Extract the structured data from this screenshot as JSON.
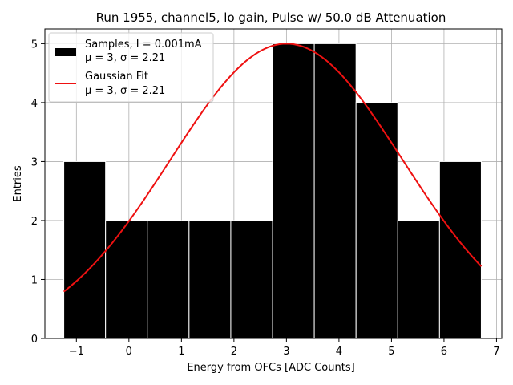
{
  "chart_data": {
    "type": "bar",
    "title": "Run 1955, channel5, lo gain, Pulse w/ 50.0 dB Attenuation",
    "xlabel": "Energy from OFCs [ADC Counts]",
    "ylabel": "Entries",
    "xlim": [
      -1.6,
      7.1
    ],
    "ylim": [
      0,
      5.25
    ],
    "xticks": [
      -1,
      0,
      1,
      2,
      3,
      4,
      5,
      6,
      7
    ],
    "xtick_labels": [
      "−1",
      "0",
      "1",
      "2",
      "3",
      "4",
      "5",
      "6",
      "7"
    ],
    "yticks": [
      0,
      1,
      2,
      3,
      4,
      5
    ],
    "ytick_labels": [
      "0",
      "1",
      "2",
      "3",
      "4",
      "5"
    ],
    "grid": true,
    "bin_edges": [
      -1.24,
      -0.445,
      0.35,
      1.145,
      1.94,
      2.735,
      3.53,
      4.325,
      5.12,
      5.915,
      6.71
    ],
    "histogram_values": [
      3,
      2,
      2,
      2,
      2,
      5,
      5,
      4,
      2,
      3
    ],
    "fit": {
      "type": "gaussian",
      "amplitude": 5.0,
      "mean": 3.0,
      "sigma": 2.21,
      "x_range": [
        -1.24,
        6.71
      ]
    },
    "legend": {
      "position": "upper-left",
      "entries": [
        {
          "name": "Samples, I = 0.001mA",
          "stats": "μ = 3, σ = 2.21",
          "color": "#000000",
          "kind": "patch"
        },
        {
          "name": "Gaussian Fit",
          "stats": "μ = 3, σ = 2.21",
          "color": "#ee1111",
          "kind": "line"
        }
      ]
    },
    "colors": {
      "bars": "#000000",
      "bar_edge": "#ffffff",
      "fit_line": "#ee1111",
      "grid": "#b0b0b0"
    }
  }
}
